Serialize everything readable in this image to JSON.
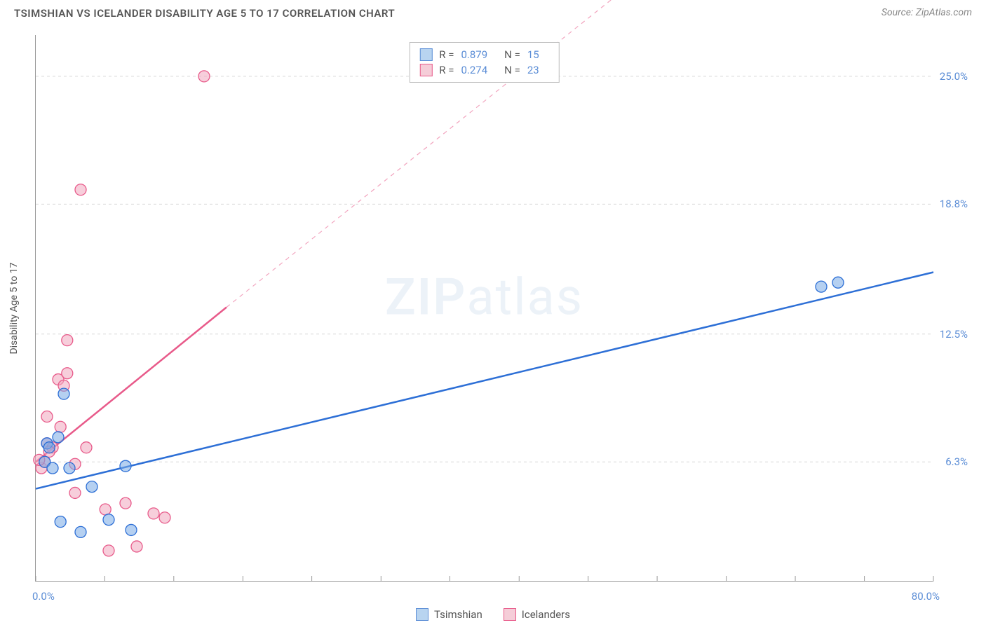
{
  "header": {
    "title": "TSIMSHIAN VS ICELANDER DISABILITY AGE 5 TO 17 CORRELATION CHART",
    "source_prefix": "Source: ",
    "source_name": "ZipAtlas.com"
  },
  "axes": {
    "y_label": "Disability Age 5 to 17",
    "x_min": 0.0,
    "x_max": 80.0,
    "y_min": 0.5,
    "y_max": 27.0,
    "x_ticks_label_left": "0.0%",
    "x_ticks_label_right": "80.0%",
    "y_tick_labels": [
      "6.3%",
      "12.5%",
      "18.8%",
      "25.0%"
    ],
    "y_tick_values": [
      6.3,
      12.5,
      18.8,
      25.0
    ],
    "x_minor_tick_values": [
      0,
      6.15,
      12.3,
      18.46,
      24.6,
      30.77,
      36.9,
      43.08,
      49.23,
      55.38,
      61.54,
      67.69,
      73.85,
      80.0
    ]
  },
  "watermark": {
    "bold": "ZIP",
    "light": "atlas"
  },
  "stats": [
    {
      "swatch_fill": "#b8d4f0",
      "swatch_border": "#5b8dd6",
      "r_label": "R =",
      "r_value": "0.879",
      "n_label": "N =",
      "n_value": "15"
    },
    {
      "swatch_fill": "#f5cdd8",
      "swatch_border": "#e85a8a",
      "r_label": "R =",
      "r_value": "0.274",
      "n_label": "N =",
      "n_value": "23"
    }
  ],
  "legend": [
    {
      "swatch_fill": "#b8d4f0",
      "swatch_border": "#5b8dd6",
      "label": "Tsimshian"
    },
    {
      "swatch_fill": "#f5cdd8",
      "swatch_border": "#e85a8a",
      "label": "Icelanders"
    }
  ],
  "series": {
    "tsimshian": {
      "color_stroke": "#2d6fd6",
      "color_fill": "rgba(120,170,230,0.55)",
      "marker_radius": 8,
      "line_width": 2.5,
      "trend_start": {
        "x": 0.0,
        "y": 5.0
      },
      "trend_solid_end": {
        "x": 80.0,
        "y": 15.5
      },
      "points": [
        {
          "x": 1.0,
          "y": 7.2
        },
        {
          "x": 2.0,
          "y": 7.5
        },
        {
          "x": 1.2,
          "y": 7.0
        },
        {
          "x": 2.5,
          "y": 9.6
        },
        {
          "x": 3.0,
          "y": 6.0
        },
        {
          "x": 5.0,
          "y": 5.1
        },
        {
          "x": 2.2,
          "y": 3.4
        },
        {
          "x": 4.0,
          "y": 2.9
        },
        {
          "x": 6.5,
          "y": 3.5
        },
        {
          "x": 8.5,
          "y": 3.0
        },
        {
          "x": 8.0,
          "y": 6.1
        },
        {
          "x": 70.0,
          "y": 14.8
        },
        {
          "x": 71.5,
          "y": 15.0
        },
        {
          "x": 0.8,
          "y": 6.3
        },
        {
          "x": 1.5,
          "y": 6.0
        }
      ]
    },
    "icelanders": {
      "color_stroke": "#e85a8a",
      "color_fill": "rgba(240,165,190,0.55)",
      "marker_radius": 8,
      "line_width": 2.5,
      "trend_start": {
        "x": 0.0,
        "y": 6.3
      },
      "trend_solid_end": {
        "x": 17.0,
        "y": 13.8
      },
      "trend_dash_end": {
        "x": 60.0,
        "y": 32.5
      },
      "points": [
        {
          "x": 0.5,
          "y": 6.0
        },
        {
          "x": 0.8,
          "y": 6.3
        },
        {
          "x": 0.3,
          "y": 6.4
        },
        {
          "x": 1.0,
          "y": 7.2
        },
        {
          "x": 1.5,
          "y": 7.0
        },
        {
          "x": 1.2,
          "y": 6.8
        },
        {
          "x": 2.0,
          "y": 10.3
        },
        {
          "x": 2.8,
          "y": 10.6
        },
        {
          "x": 2.5,
          "y": 10.0
        },
        {
          "x": 2.8,
          "y": 12.2
        },
        {
          "x": 1.0,
          "y": 8.5
        },
        {
          "x": 2.2,
          "y": 8.0
        },
        {
          "x": 4.5,
          "y": 7.0
        },
        {
          "x": 3.5,
          "y": 6.2
        },
        {
          "x": 3.5,
          "y": 4.8
        },
        {
          "x": 6.2,
          "y": 4.0
        },
        {
          "x": 6.5,
          "y": 2.0
        },
        {
          "x": 9.0,
          "y": 2.2
        },
        {
          "x": 10.5,
          "y": 3.8
        },
        {
          "x": 11.5,
          "y": 3.6
        },
        {
          "x": 8.0,
          "y": 4.3
        },
        {
          "x": 4.0,
          "y": 19.5
        },
        {
          "x": 15.0,
          "y": 25.0
        }
      ]
    }
  },
  "style": {
    "grid_color": "#d8d8d8",
    "axis_color": "#999999",
    "background": "#ffffff",
    "title_color": "#555555",
    "tick_label_color": "#5b8dd6"
  }
}
